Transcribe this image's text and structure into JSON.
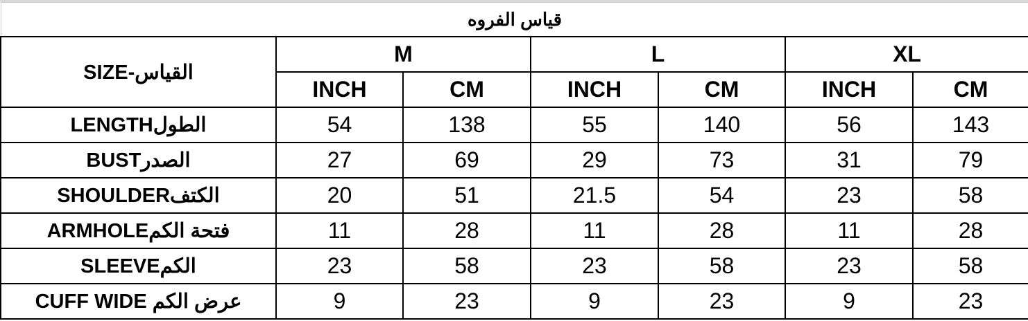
{
  "title": "قياس الفروه",
  "size_header": "القياس-SIZE",
  "sizes": [
    "M",
    "L",
    "XL"
  ],
  "units": [
    "INCH",
    "CM"
  ],
  "rows": [
    {
      "label": "الطولLENGTH",
      "values": [
        "54",
        "138",
        "55",
        "140",
        "56",
        "143"
      ]
    },
    {
      "label": "الصدرBUST",
      "values": [
        "27",
        "69",
        "29",
        "73",
        "31",
        "79"
      ]
    },
    {
      "label": "الكتفSHOULDER",
      "values": [
        "20",
        "51",
        "21.5",
        "54",
        "23",
        "58"
      ]
    },
    {
      "label": "فتحة الكمARMHOLE",
      "values": [
        "11",
        "28",
        "11",
        "28",
        "11",
        "28"
      ]
    },
    {
      "label": "الكمSLEEVE",
      "values": [
        "23",
        "58",
        "23",
        "58",
        "23",
        "58"
      ]
    },
    {
      "label": "عرض الكم CUFF WIDE",
      "values": [
        "9",
        "23",
        "9",
        "23",
        "9",
        "23"
      ]
    }
  ]
}
